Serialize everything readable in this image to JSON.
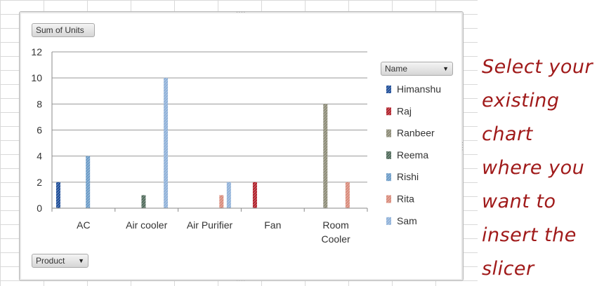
{
  "chart_buttons": {
    "values_field": "Sum of Units",
    "legend_field": "Name",
    "axis_field": "Product"
  },
  "instruction_lines": [
    "Select your",
    "existing",
    "chart",
    "where you",
    "want to",
    "insert the",
    "slicer"
  ],
  "chart_data": {
    "type": "bar",
    "title": "",
    "xlabel": "",
    "ylabel": "",
    "ylim": [
      0,
      12
    ],
    "yticks": [
      "0",
      "2",
      "4",
      "6",
      "8",
      "10",
      "12"
    ],
    "grid": true,
    "legend_position": "right",
    "categories": [
      "AC",
      "Air cooler",
      "Air Purifier",
      "Fan",
      "Room Cooler"
    ],
    "series": [
      {
        "name": "Himanshu",
        "color": "#1f4e99",
        "values": [
          2,
          0,
          0,
          0,
          0
        ]
      },
      {
        "name": "Raj",
        "color": "#b0202a",
        "values": [
          0,
          0,
          0,
          2,
          0
        ]
      },
      {
        "name": "Ranbeer",
        "color": "#8c8b76",
        "values": [
          0,
          0,
          0,
          0,
          8
        ]
      },
      {
        "name": "Reema",
        "color": "#4f6a5a",
        "values": [
          0,
          1,
          0,
          0,
          0
        ]
      },
      {
        "name": "Rishi",
        "color": "#6b9bc7",
        "values": [
          4,
          0,
          0,
          0,
          0
        ]
      },
      {
        "name": "Rita",
        "color": "#d98a7a",
        "values": [
          0,
          0,
          1,
          0,
          2
        ]
      },
      {
        "name": "Sam",
        "color": "#8fb1d9",
        "values": [
          0,
          10,
          2,
          0,
          0
        ]
      }
    ]
  }
}
